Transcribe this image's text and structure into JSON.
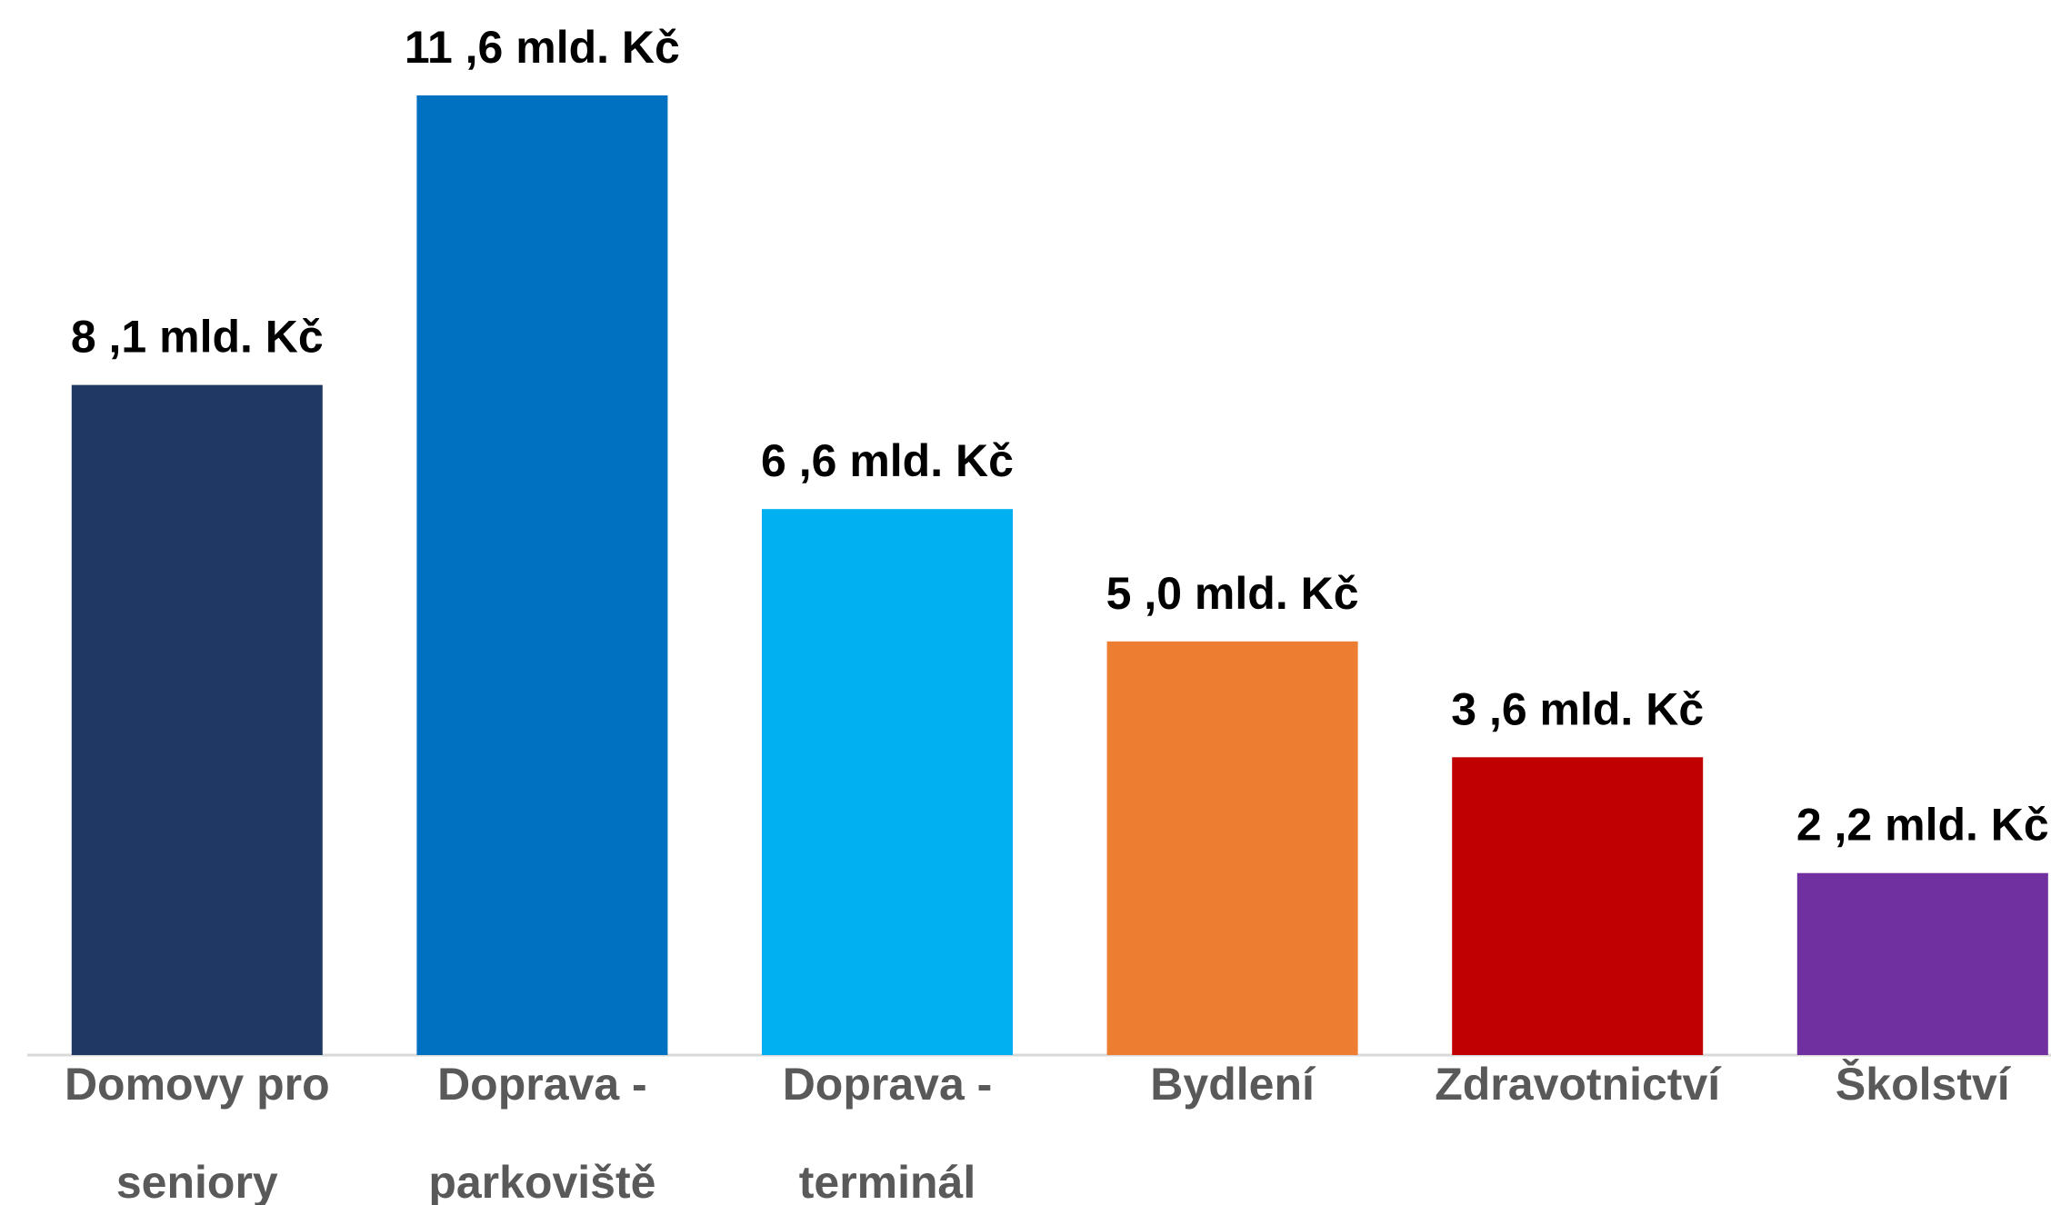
{
  "chart_data": {
    "type": "bar",
    "categories": [
      "Domovy pro seniory",
      "Doprava - parkoviště",
      "Doprava - terminál",
      "Bydlení",
      "Zdravotnictví",
      "Školství"
    ],
    "values": [
      8.1,
      11.6,
      6.6,
      5.0,
      3.6,
      2.2
    ],
    "value_labels": [
      "8 ,1 mld. Kč",
      "11 ,6 mld. Kč",
      "6 ,6 mld. Kč",
      "5 ,0 mld. Kč",
      "3 ,6 mld. Kč",
      "2 ,2 mld. Kč"
    ],
    "colors": [
      "#203864",
      "#0070c0",
      "#00b0f0",
      "#ed7d31",
      "#c00000",
      "#7030a0"
    ]
  }
}
